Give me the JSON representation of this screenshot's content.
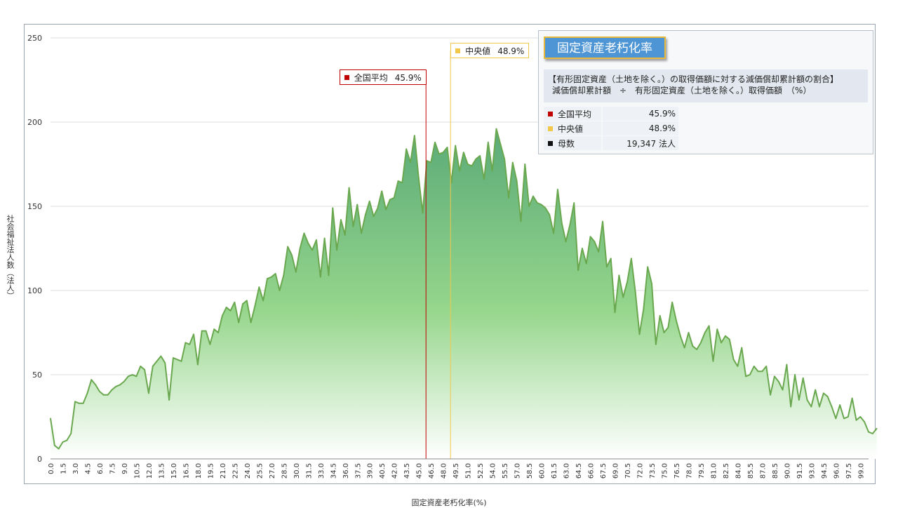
{
  "chart_data": {
    "type": "area",
    "title": "固定資産老朽化率",
    "xlabel": "固定資産老朽化率(%)",
    "ylabel": "社会福祉法人数（法人）",
    "ylim": [
      0,
      250
    ],
    "yticks": [
      0,
      50,
      100,
      150,
      200,
      250
    ],
    "xlim": [
      0,
      100
    ],
    "x_step": 0.5,
    "x_tick_labels": [
      "0.0",
      "1.5",
      "3.0",
      "4.5",
      "6.0",
      "7.5",
      "9.0",
      "10.5",
      "12.0",
      "13.5",
      "15.0",
      "16.5",
      "18.0",
      "19.5",
      "21.0",
      "22.5",
      "24.0",
      "25.5",
      "27.0",
      "28.5",
      "30.0",
      "31.5",
      "33.0",
      "34.5",
      "36.0",
      "37.5",
      "39.0",
      "40.5",
      "42.0",
      "43.5",
      "45.0",
      "46.5",
      "48.0",
      "49.5",
      "51.0",
      "52.5",
      "54.0",
      "55.5",
      "57.0",
      "58.5",
      "60.0",
      "61.5",
      "63.0",
      "64.5",
      "66.0",
      "67.5",
      "69.0",
      "70.5",
      "72.0",
      "73.5",
      "75.0",
      "76.5",
      "78.0",
      "79.5",
      "81.0",
      "82.5",
      "84.0",
      "85.5",
      "87.0",
      "88.5",
      "90.0",
      "91.5",
      "93.0",
      "94.5",
      "96.0",
      "97.5",
      "99.0"
    ],
    "grid": true,
    "series": [
      {
        "color": "#6aa84f",
        "values": [
          24,
          8,
          6,
          10,
          11,
          15,
          34,
          33,
          33,
          39,
          47,
          44,
          40,
          38,
          38,
          41,
          43,
          44,
          46,
          49,
          50,
          49,
          55,
          53,
          39,
          55,
          58,
          61,
          57,
          35,
          60,
          59,
          58,
          69,
          68,
          74,
          56,
          76,
          76,
          68,
          77,
          75,
          85,
          90,
          88,
          93,
          81,
          92,
          94,
          81,
          91,
          102,
          94,
          107,
          108,
          110,
          100,
          109,
          126,
          121,
          111,
          125,
          134,
          128,
          124,
          130,
          108,
          131,
          109,
          149,
          124,
          142,
          133,
          161,
          138,
          151,
          134,
          145,
          153,
          144,
          149,
          159,
          148,
          154,
          155,
          165,
          164,
          184,
          176,
          192,
          167,
          146,
          177,
          176,
          188,
          181,
          182,
          185,
          164,
          186,
          171,
          182,
          175,
          174,
          178,
          180,
          166,
          188,
          171,
          196,
          187,
          178,
          155,
          176,
          165,
          141,
          175,
          150,
          156,
          152,
          151,
          149,
          145,
          134,
          160,
          140,
          129,
          139,
          152,
          112,
          125,
          116,
          132,
          129,
          123,
          141,
          114,
          119,
          87,
          109,
          96,
          105,
          119,
          99,
          74,
          89,
          114,
          104,
          68,
          85,
          75,
          78,
          93,
          82,
          73,
          66,
          75,
          67,
          65,
          69,
          75,
          79,
          58,
          77,
          69,
          73,
          71,
          59,
          55,
          66,
          49,
          50,
          55,
          52,
          52,
          55,
          38,
          49,
          46,
          41,
          56,
          31,
          50,
          35,
          48,
          35,
          31,
          41,
          31,
          39,
          37,
          31,
          24,
          32,
          24,
          25,
          36,
          23,
          25,
          22,
          16,
          15,
          18
        ]
      }
    ],
    "markers": [
      {
        "name": "全国平均",
        "value_label": "45.9%",
        "x": 45.9,
        "color": "#c00000"
      },
      {
        "name": "中央値",
        "value_label": "48.9%",
        "x": 48.9,
        "color": "#f2c84b"
      }
    ]
  },
  "info_box": {
    "title": "固定資産老朽化率",
    "desc_line1": "【有形固定資産（土地を除く。）の取得価額に対する減価償却累計額の割合】",
    "desc_line2": "減価償却累計額　÷　有形固定資産（土地を除く。）取得価額　（%）",
    "rows": [
      {
        "label": "全国平均",
        "value": "45.9%",
        "color": "#c00000"
      },
      {
        "label": "中央値",
        "value": "48.9%",
        "color": "#f2c84b"
      },
      {
        "label": "母数",
        "value": "19,347  法人",
        "color": "#111111"
      }
    ]
  }
}
